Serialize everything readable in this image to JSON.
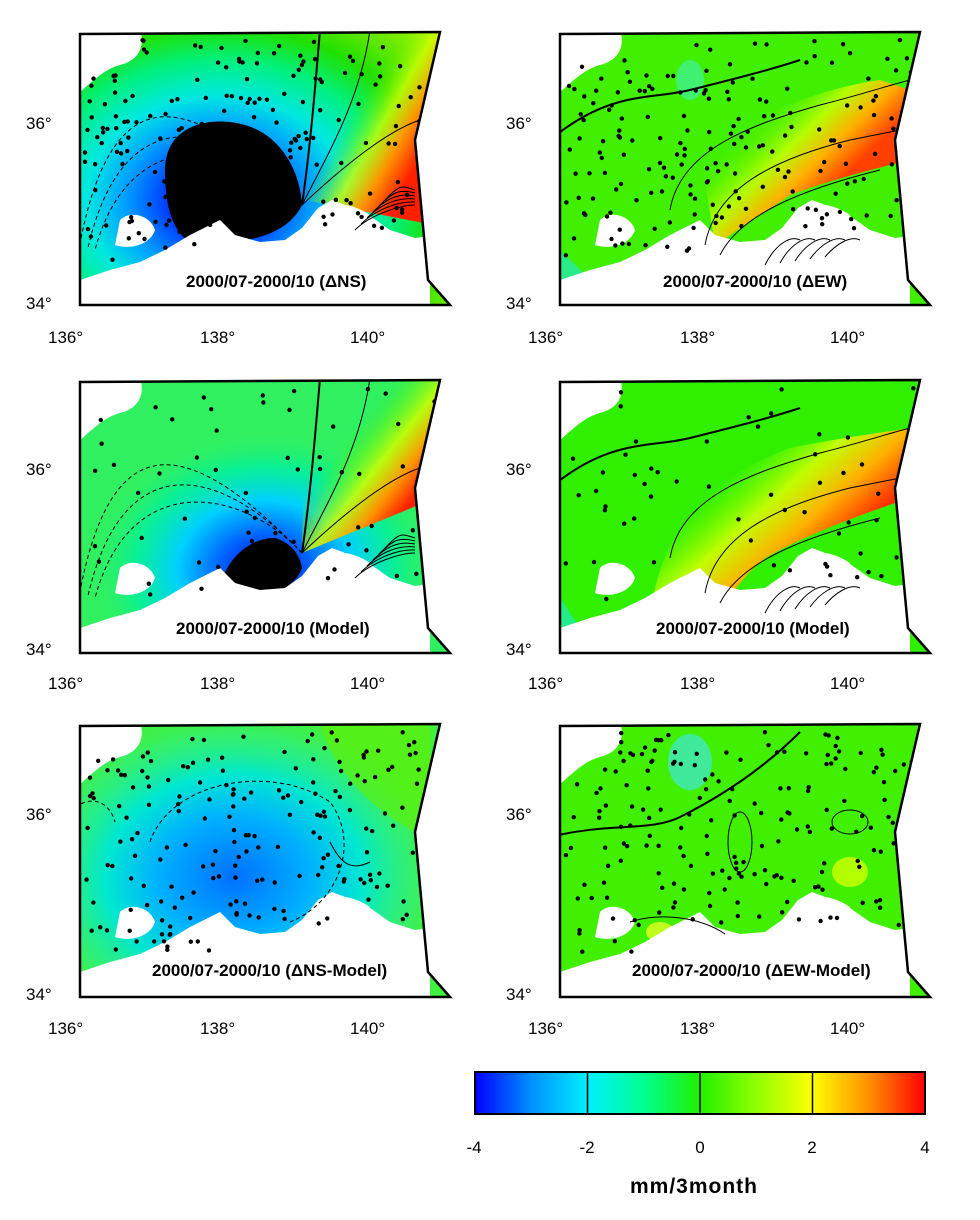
{
  "panels": [
    {
      "id": "p1",
      "label": "2000/07-2000/10 (ΔNS)",
      "field": "ns_obs",
      "dots": "dense"
    },
    {
      "id": "p2",
      "label": "2000/07-2000/10 (ΔEW)",
      "field": "ew_obs",
      "dots": "dense"
    },
    {
      "id": "p3",
      "label": "2000/07-2000/10 (Model)",
      "field": "ns_model",
      "dots": "sparse"
    },
    {
      "id": "p4",
      "label": "2000/07-2000/10 (Model)",
      "field": "ew_model",
      "dots": "sparse"
    },
    {
      "id": "p5",
      "label": "2000/07-2000/10 (ΔNS-Model)",
      "field": "ns_resid",
      "dots": "dense"
    },
    {
      "id": "p6",
      "label": "2000/07-2000/10 (ΔEW-Model)",
      "field": "ew_resid",
      "dots": "dense"
    }
  ],
  "axes": {
    "lat_ticks": [
      "36°",
      "34°"
    ],
    "lon_ticks": [
      "136°",
      "138°",
      "140°"
    ]
  },
  "colorbar": {
    "ticks": [
      "-4",
      "-2",
      "0",
      "2",
      "4"
    ],
    "unit": "mm/3month",
    "colors": [
      "#0000ff",
      "#00c0ff",
      "#00ffff",
      "#00ff80",
      "#00ff00",
      "#80ff00",
      "#ffff00",
      "#ffa000",
      "#ff0000"
    ]
  }
}
